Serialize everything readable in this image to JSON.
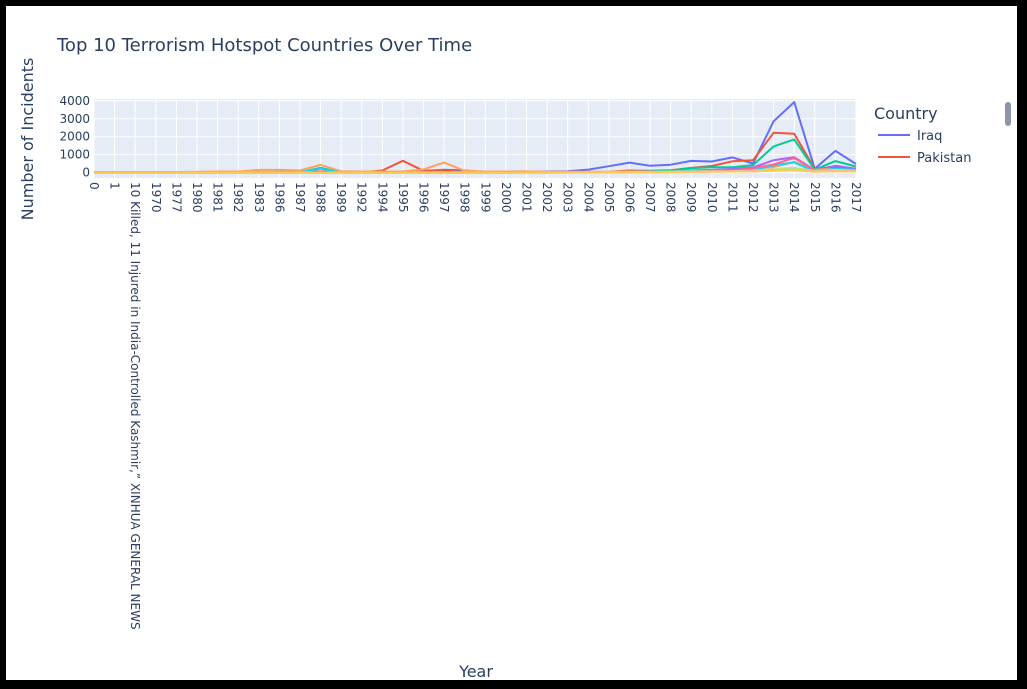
{
  "chart_data": {
    "type": "line",
    "title": "Top 10 Terrorism Hotspot Countries Over Time",
    "xlabel": "Year",
    "ylabel": "Number of Incidents",
    "ylim": [
      -300,
      4100
    ],
    "yticks": [
      0,
      1000,
      2000,
      3000,
      4000
    ],
    "grid": true,
    "legend_title": "Country",
    "legend_position": "right",
    "categories": [
      "0",
      "1",
      "10 Killed, 11 Injured in India-Controlled Kashmir,” XINHUA GENERAL NEWS",
      "1970",
      "1977",
      "1980",
      "1981",
      "1982",
      "1983",
      "1986",
      "1987",
      "1988",
      "1989",
      "1992",
      "1994",
      "1995",
      "1996",
      "1997",
      "1998",
      "1999",
      "2000",
      "2001",
      "2002",
      "2003",
      "2004",
      "2005",
      "2006",
      "2007",
      "2008",
      "2009",
      "2010",
      "2011",
      "2012",
      "2013",
      "2014",
      "2015",
      "2016",
      "2017"
    ],
    "series": [
      {
        "name": "Iraq",
        "color": "#636efa",
        "values": [
          20,
          20,
          20,
          20,
          20,
          20,
          20,
          20,
          30,
          30,
          20,
          60,
          20,
          20,
          30,
          60,
          90,
          160,
          120,
          30,
          40,
          40,
          60,
          80,
          170,
          360,
          560,
          380,
          440,
          650,
          620,
          850,
          510,
          2860,
          3930,
          210,
          1210,
          480
        ]
      },
      {
        "name": "Pakistan",
        "color": "#ef553b",
        "values": [
          20,
          20,
          20,
          20,
          20,
          20,
          20,
          20,
          30,
          40,
          20,
          60,
          20,
          20,
          120,
          660,
          100,
          130,
          30,
          20,
          30,
          30,
          40,
          50,
          40,
          50,
          120,
          100,
          130,
          260,
          370,
          630,
          690,
          2220,
          2160,
          200,
          320,
          170
        ]
      },
      {
        "color": "#00cc96",
        "values": [
          10,
          10,
          10,
          10,
          10,
          10,
          10,
          10,
          30,
          30,
          20,
          260,
          20,
          10,
          20,
          20,
          20,
          20,
          20,
          10,
          20,
          20,
          20,
          20,
          20,
          30,
          60,
          80,
          120,
          250,
          300,
          300,
          420,
          1460,
          1850,
          160,
          640,
          340
        ]
      },
      {
        "color": "#ab63fa",
        "values": [
          0,
          0,
          0,
          0,
          0,
          0,
          0,
          0,
          0,
          0,
          0,
          0,
          0,
          0,
          0,
          0,
          0,
          0,
          0,
          0,
          0,
          20,
          40,
          50,
          30,
          30,
          60,
          60,
          60,
          120,
          150,
          200,
          290,
          690,
          860,
          140,
          380,
          220
        ]
      },
      {
        "color": "#ffa15a",
        "values": [
          30,
          30,
          30,
          30,
          30,
          50,
          60,
          60,
          150,
          150,
          120,
          430,
          80,
          60,
          60,
          60,
          180,
          560,
          100,
          60,
          60,
          70,
          50,
          50,
          40,
          50,
          60,
          50,
          60,
          80,
          100,
          120,
          230,
          300,
          600,
          160,
          210,
          140
        ]
      },
      {
        "color": "#19d3f3",
        "values": [
          10,
          10,
          10,
          10,
          10,
          10,
          10,
          10,
          30,
          40,
          30,
          220,
          20,
          10,
          20,
          20,
          20,
          30,
          20,
          10,
          20,
          20,
          30,
          20,
          20,
          20,
          30,
          40,
          60,
          90,
          90,
          70,
          130,
          410,
          570,
          70,
          220,
          160
        ]
      },
      {
        "color": "#ff6692",
        "values": [
          0,
          0,
          0,
          0,
          0,
          0,
          0,
          0,
          0,
          0,
          0,
          0,
          0,
          0,
          0,
          0,
          0,
          0,
          0,
          0,
          0,
          0,
          0,
          20,
          20,
          20,
          40,
          40,
          40,
          60,
          90,
          120,
          250,
          450,
          820,
          110,
          150,
          100
        ]
      },
      {
        "color": "#b6e880",
        "values": [
          10,
          10,
          10,
          10,
          10,
          10,
          10,
          10,
          10,
          10,
          10,
          10,
          10,
          10,
          10,
          10,
          10,
          10,
          10,
          10,
          10,
          10,
          20,
          20,
          20,
          30,
          40,
          40,
          60,
          70,
          80,
          80,
          120,
          180,
          260,
          90,
          150,
          110
        ]
      },
      {
        "color": "#ff97ff",
        "values": [
          0,
          0,
          0,
          0,
          0,
          0,
          0,
          0,
          0,
          0,
          0,
          0,
          0,
          0,
          0,
          0,
          0,
          0,
          0,
          0,
          0,
          0,
          0,
          0,
          10,
          10,
          20,
          20,
          30,
          40,
          60,
          70,
          90,
          120,
          160,
          60,
          90,
          80
        ]
      },
      {
        "color": "#fecb52",
        "values": [
          0,
          0,
          0,
          0,
          0,
          0,
          0,
          0,
          0,
          0,
          0,
          0,
          0,
          0,
          0,
          0,
          0,
          0,
          0,
          0,
          0,
          0,
          0,
          0,
          10,
          10,
          20,
          20,
          30,
          40,
          50,
          60,
          70,
          100,
          140,
          50,
          80,
          60
        ]
      }
    ]
  }
}
